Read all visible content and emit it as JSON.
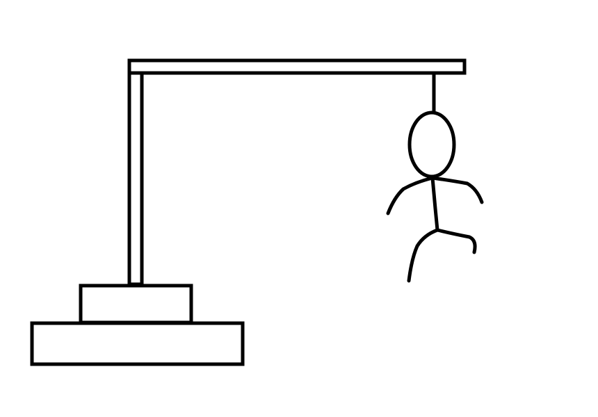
{
  "game": {
    "name": "hangman",
    "colors": {
      "background": "#ffffff",
      "ink": "#000000"
    },
    "gallows_parts": [
      "base-step-bottom",
      "base-step-top",
      "upright-post",
      "crossbeam",
      "rope"
    ],
    "figure_parts_shown": [
      "head",
      "torso",
      "left-arm",
      "right-arm",
      "left-leg",
      "right-leg"
    ],
    "figure_parts_total": 6
  }
}
